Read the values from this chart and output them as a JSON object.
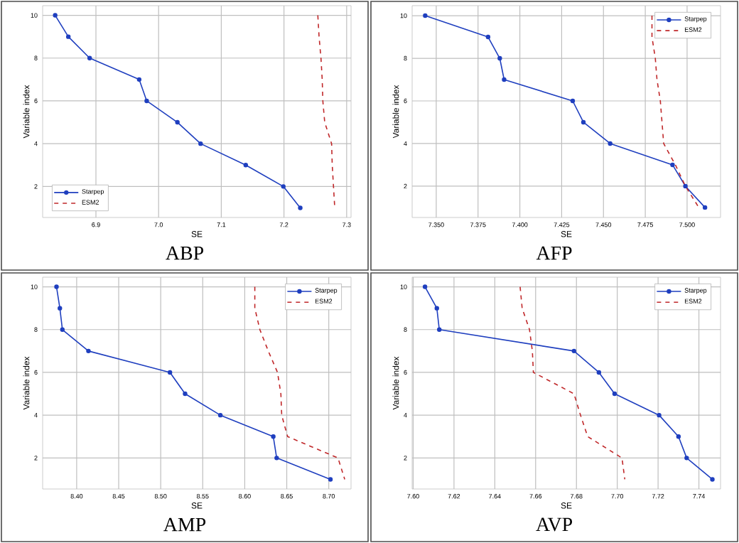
{
  "chart_data": [
    {
      "type": "line",
      "title": "ABP",
      "xlabel": "SE",
      "ylabel": "Variable index",
      "xlim": [
        6.815,
        7.307
      ],
      "ylim": [
        0.55,
        10.45
      ],
      "xticks": [
        6.9,
        {
          "value": 7.0,
          "label": "7.0"
        },
        7.1,
        7.2,
        7.3
      ],
      "yticks": [
        2,
        4,
        6,
        8,
        10
      ],
      "grid": true,
      "legend": "bottom left",
      "series": [
        {
          "name": "Starpep",
          "color": "#1f3fbf",
          "marker": "circle",
          "line_style": "solid",
          "x": [
            6.835,
            6.856,
            6.89,
            6.969,
            6.981,
            7.03,
            7.067,
            7.139,
            7.199,
            7.226
          ],
          "values": [
            10,
            9,
            8,
            7,
            6,
            5,
            4,
            3,
            2,
            1
          ]
        },
        {
          "name": "ESM2",
          "color": "#c0282a",
          "marker": "none",
          "line_style": "dashed",
          "x": [
            7.254,
            7.256,
            7.259,
            7.261,
            7.262,
            7.265,
            7.276,
            7.277,
            7.279,
            7.281
          ],
          "values": [
            10,
            9,
            8,
            7,
            6,
            5,
            4,
            3,
            2,
            1
          ]
        }
      ]
    },
    {
      "type": "line",
      "title": "AFP",
      "xlabel": "SE",
      "ylabel": "Variable index",
      "xlim": [
        7.3356,
        7.52
      ],
      "ylim": [
        0.53,
        10.47
      ],
      "xticks": [
        {
          "value": 7.35,
          "label": "7.350"
        },
        7.375,
        {
          "value": 7.4,
          "label": "7.400"
        },
        7.425,
        {
          "value": 7.45,
          "label": "7.450"
        },
        7.475,
        {
          "value": 7.5,
          "label": "7.500"
        }
      ],
      "yticks": [
        2,
        4,
        6,
        8,
        10
      ],
      "grid": true,
      "legend": "top right",
      "series": [
        {
          "name": "Starpep",
          "color": "#1f3fbf",
          "marker": "circle",
          "line_style": "solid",
          "x": [
            7.3434,
            7.381,
            7.388,
            7.3906,
            7.4316,
            7.438,
            7.454,
            7.4913,
            7.499,
            7.5107
          ],
          "values": [
            10,
            9,
            8,
            7,
            6,
            5,
            4,
            3,
            2,
            1
          ]
        },
        {
          "name": "ESM2",
          "color": "#c0282a",
          "marker": "none",
          "line_style": "dashed",
          "x": [
            7.479,
            7.479,
            7.481,
            7.482,
            7.484,
            7.485,
            7.486,
            7.493,
            7.499,
            7.507
          ],
          "values": [
            10,
            9,
            8,
            7,
            6,
            5,
            4,
            3,
            2,
            1
          ]
        }
      ]
    },
    {
      "type": "line",
      "title": "AMP",
      "xlabel": "SE",
      "ylabel": "Variable index",
      "xlim": [
        8.3595,
        8.7265
      ],
      "ylim": [
        0.55,
        10.45
      ],
      "xticks": [
        {
          "value": 8.4,
          "label": "8.40"
        },
        8.45,
        {
          "value": 8.5,
          "label": "8.50"
        },
        8.55,
        {
          "value": 8.6,
          "label": "8.60"
        },
        8.65,
        {
          "value": 8.7,
          "label": "8.70"
        }
      ],
      "yticks": [
        2,
        4,
        6,
        8,
        10
      ],
      "grid": true,
      "legend": "top right",
      "series": [
        {
          "name": "Starpep",
          "color": "#1f3fbf",
          "marker": "circle",
          "line_style": "solid",
          "x": [
            8.376,
            8.38,
            8.383,
            8.414,
            8.511,
            8.529,
            8.571,
            8.634,
            8.638,
            8.702
          ],
          "values": [
            10,
            9,
            8,
            7,
            6,
            5,
            4,
            3,
            2,
            1
          ]
        },
        {
          "name": "ESM2",
          "color": "#c0282a",
          "marker": "none",
          "line_style": "dashed",
          "x": [
            8.612,
            8.612,
            8.618,
            8.628,
            8.639,
            8.643,
            8.644,
            8.651,
            8.711,
            8.719
          ],
          "values": [
            10,
            9,
            8,
            7,
            6,
            5,
            4,
            3,
            2,
            1
          ]
        }
      ]
    },
    {
      "type": "line",
      "title": "AVP",
      "xlabel": "SE",
      "ylabel": "Variable index",
      "xlim": [
        7.5995,
        7.7506
      ],
      "ylim": [
        0.55,
        10.45
      ],
      "xticks": [
        {
          "value": 7.6,
          "label": "7.60"
        },
        7.62,
        7.64,
        7.66,
        7.68,
        {
          "value": 7.7,
          "label": "7.70"
        },
        7.72,
        7.74
      ],
      "yticks": [
        2,
        4,
        6,
        8,
        10
      ],
      "grid": true,
      "legend": "top right",
      "series": [
        {
          "name": "Starpep",
          "color": "#1f3fbf",
          "marker": "circle",
          "line_style": "solid",
          "x": [
            7.6058,
            7.6116,
            7.6128,
            7.6788,
            7.691,
            7.6987,
            7.7205,
            7.73,
            7.734,
            7.7466
          ],
          "values": [
            10,
            9,
            8,
            7,
            6,
            5,
            4,
            3,
            2,
            1
          ]
        },
        {
          "name": "ESM2",
          "color": "#c0282a",
          "marker": "none",
          "line_style": "dashed",
          "x": [
            7.6524,
            7.6534,
            7.657,
            7.6584,
            7.6589,
            7.6788,
            7.682,
            7.6855,
            7.7023,
            7.7037
          ],
          "values": [
            10,
            9,
            8,
            7,
            6,
            5,
            4,
            3,
            2,
            1
          ]
        }
      ]
    }
  ]
}
